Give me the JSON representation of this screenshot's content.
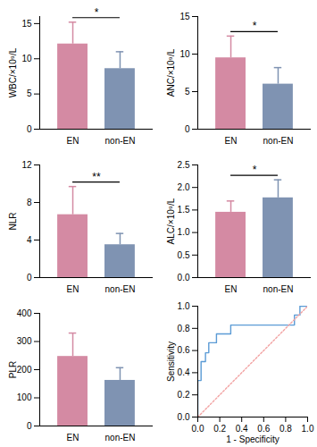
{
  "chart_data": [
    {
      "type": "bar",
      "categories": [
        "EN",
        "non-EN"
      ],
      "values": [
        12.1,
        8.6
      ],
      "errors": [
        3.1,
        2.4
      ],
      "colors": [
        "#d48aa3",
        "#7f93b2"
      ],
      "ylabel": "WBC/×10⁹/L",
      "ylim": [
        0,
        16
      ],
      "yticks": [
        0,
        5,
        10,
        15
      ],
      "significance": "*"
    },
    {
      "type": "bar",
      "categories": [
        "EN",
        "non-EN"
      ],
      "values": [
        9.5,
        6.0
      ],
      "errors": [
        2.9,
        2.2
      ],
      "colors": [
        "#d48aa3",
        "#7f93b2"
      ],
      "ylabel": "ANC/×10⁹/L",
      "ylim": [
        0,
        15
      ],
      "yticks": [
        0,
        5,
        10,
        15
      ],
      "significance": "*"
    },
    {
      "type": "bar",
      "categories": [
        "EN",
        "non-EN"
      ],
      "values": [
        6.7,
        3.5
      ],
      "errors": [
        3.0,
        1.2
      ],
      "colors": [
        "#d48aa3",
        "#7f93b2"
      ],
      "ylabel": "NLR",
      "ylim": [
        0,
        12
      ],
      "yticks": [
        0,
        4,
        8,
        12
      ],
      "significance": "**"
    },
    {
      "type": "bar",
      "categories": [
        "EN",
        "non-EN"
      ],
      "values": [
        1.45,
        1.77
      ],
      "errors": [
        0.25,
        0.4
      ],
      "colors": [
        "#d48aa3",
        "#7f93b2"
      ],
      "ylabel": "ALC/×10⁹/L",
      "ylim": [
        0,
        2.5
      ],
      "yticks": [
        {
          "value": 0,
          "label": "0.0"
        },
        {
          "value": 0.5,
          "label": "0.5"
        },
        {
          "value": 1,
          "label": "1.0"
        },
        {
          "value": 1.5,
          "label": "1.5"
        },
        {
          "value": 2,
          "label": "2.0"
        },
        {
          "value": 2.5,
          "label": "2.5"
        }
      ],
      "significance": "*"
    },
    {
      "type": "bar",
      "categories": [
        "EN",
        "non-EN"
      ],
      "values": [
        247,
        162
      ],
      "errors": [
        83,
        45
      ],
      "colors": [
        "#d48aa3",
        "#7f93b2"
      ],
      "ylabel": "PLR",
      "ylim": [
        0,
        400
      ],
      "yticks": [
        0,
        100,
        200,
        300,
        400
      ]
    },
    {
      "type": "line",
      "xlabel": "1 - Specificity",
      "ylabel": "Sensitivity",
      "xlim": [
        0,
        1
      ],
      "ylim": [
        0,
        1
      ],
      "xticks": [
        {
          "value": 0,
          "label": "0.0"
        },
        {
          "value": 0.2,
          "label": "0.2"
        },
        {
          "value": 0.4,
          "label": "0.4"
        },
        {
          "value": 0.6,
          "label": "0.6"
        },
        {
          "value": 0.8,
          "label": "0.8"
        },
        {
          "value": 1,
          "label": "1.0"
        }
      ],
      "yticks": [
        {
          "value": 0,
          "label": "0.0"
        },
        {
          "value": 0.2,
          "label": "0.2"
        },
        {
          "value": 0.4,
          "label": "0.4"
        },
        {
          "value": 0.6,
          "label": "0.6"
        },
        {
          "value": 0.8,
          "label": "0.8"
        },
        {
          "value": 1,
          "label": "1.0"
        }
      ],
      "series": [
        {
          "color": "#5b9bd5",
          "line_style": "solid",
          "x": [
            0,
            0,
            0.03,
            0.03,
            0.07,
            0.07,
            0.1,
            0.1,
            0.17,
            0.17,
            0.3,
            0.3,
            0.88,
            0.88,
            0.93,
            0.93,
            1
          ],
          "values": [
            0,
            0.33,
            0.33,
            0.5,
            0.5,
            0.58,
            0.58,
            0.67,
            0.67,
            0.75,
            0.75,
            0.83,
            0.83,
            0.92,
            0.92,
            1,
            1
          ]
        },
        {
          "color": "#f2a3a3",
          "line_style": "dotted",
          "x": [
            0,
            1
          ],
          "values": [
            0,
            1
          ]
        }
      ]
    }
  ]
}
